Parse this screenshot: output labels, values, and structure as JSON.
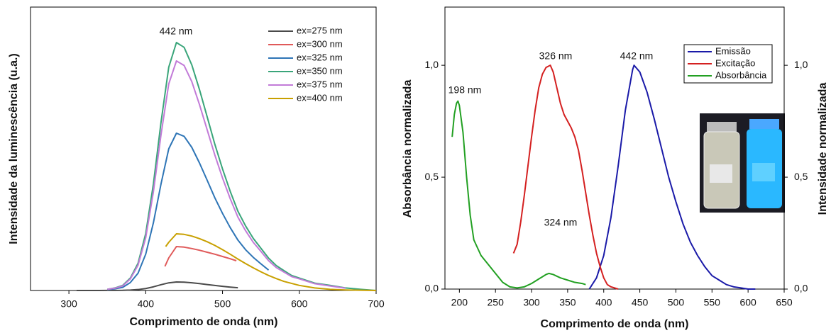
{
  "chart_data": [
    {
      "type": "line",
      "x_label": "Comprimento de onda (nm)",
      "y_label": "Intensidade da luminescência  (u.a.)",
      "xlim": [
        250,
        700
      ],
      "xticks": [
        300,
        400,
        500,
        600,
        700
      ],
      "ylim": [
        0,
        100
      ],
      "legend": "upper right",
      "legend_frame": false,
      "annotations": [
        "442 nm"
      ],
      "series": [
        {
          "name": "ex=275 nm",
          "color": "#4a4a4a",
          "x": [
            310,
            320,
            330,
            340,
            350,
            360,
            370,
            380,
            390,
            400,
            410,
            420,
            430,
            440,
            450,
            460,
            470,
            480,
            490,
            500,
            510,
            520
          ],
          "values": [
            0,
            0,
            0,
            0,
            0.03,
            0.03,
            0.06,
            0.15,
            0.33,
            0.69,
            1.29,
            2.04,
            2.7,
            3,
            2.94,
            2.73,
            2.43,
            2.1,
            1.77,
            1.47,
            1.2,
            0.96
          ]
        },
        {
          "name": "ex=300 nm",
          "color": "#e05a5a",
          "x": [
            425,
            430,
            440,
            450,
            460,
            470,
            480,
            490,
            500,
            510,
            518
          ],
          "values": [
            8.5,
            11.5,
            15.5,
            15.3,
            14.8,
            14.2,
            13.5,
            12.8,
            12,
            11.2,
            10.5
          ]
        },
        {
          "name": "ex=325 nm",
          "color": "#2e75b6",
          "x": [
            350,
            360,
            370,
            380,
            390,
            400,
            410,
            420,
            430,
            440,
            450,
            460,
            470,
            480,
            490,
            500,
            510,
            520,
            530,
            540,
            550,
            560
          ],
          "values": [
            0.3,
            0.6,
            1.1,
            2.8,
            6.1,
            12.8,
            23.9,
            37.7,
            50,
            55.5,
            54.4,
            50.5,
            45,
            38.9,
            32.7,
            27.2,
            22.2,
            17.8,
            14.4,
            11.7,
            9.4,
            7.2
          ]
        },
        {
          "name": "ex=350 nm",
          "color": "#3aa57a",
          "x": [
            350,
            360,
            370,
            380,
            390,
            400,
            410,
            420,
            430,
            440,
            450,
            460,
            470,
            480,
            490,
            500,
            510,
            520,
            530,
            540,
            550,
            560,
            570,
            580,
            590,
            600,
            620,
            640,
            660,
            680,
            700
          ],
          "values": [
            0.4,
            0.9,
            1.8,
            4.4,
            9.6,
            20.1,
            37.6,
            59.5,
            78.8,
            87.5,
            85.8,
            79.6,
            70.9,
            61.3,
            51.6,
            42.9,
            35,
            28,
            22.8,
            18.4,
            14.9,
            11.4,
            8.8,
            7,
            5.3,
            4.4,
            2.6,
            1.8,
            0.9,
            0.4,
            0
          ]
        },
        {
          "name": "ex=375 nm",
          "color": "#c27bd8",
          "x": [
            350,
            360,
            370,
            380,
            390,
            400,
            410,
            420,
            430,
            440,
            450,
            460,
            470,
            480,
            490,
            500,
            510,
            520,
            530,
            540,
            550,
            560,
            570,
            580,
            590,
            600,
            620,
            640,
            660
          ],
          "values": [
            0.4,
            0.8,
            1.6,
            4.1,
            8.9,
            18.6,
            34.8,
            55.1,
            72.9,
            81,
            79.4,
            73.7,
            65.6,
            56.7,
            47.8,
            39.7,
            32.4,
            25.9,
            21.1,
            17,
            13.8,
            10.5,
            8.1,
            6.5,
            4.9,
            4.1,
            2.4,
            1.6,
            0.8
          ]
        },
        {
          "name": "ex=400 nm",
          "color": "#c8a000",
          "x": [
            426,
            430,
            440,
            450,
            460,
            470,
            480,
            490,
            500,
            510,
            520,
            530,
            540,
            550,
            560,
            570,
            580,
            600,
            620,
            640,
            660,
            680,
            700
          ],
          "values": [
            15.5,
            17,
            20,
            19.8,
            19.2,
            18.3,
            17.2,
            15.9,
            14.4,
            12.8,
            11.1,
            9.5,
            8,
            6.6,
            5.3,
            4.2,
            3.2,
            1.8,
            0.9,
            0.4,
            0.2,
            0.1,
            0
          ]
        }
      ]
    },
    {
      "type": "line",
      "x_label": "Comprimento de onda (nm)",
      "y_label": "Absorbância normalizada",
      "y2_label": "Intensidade normalizada",
      "xlim": [
        180,
        650
      ],
      "xticks": [
        200,
        250,
        300,
        350,
        400,
        450,
        500,
        550,
        600,
        650
      ],
      "ylim": [
        0,
        1.26
      ],
      "yticks": [
        {
          "value": 0,
          "label": "0,0"
        },
        {
          "value": 0.5,
          "label": "0,5"
        },
        {
          "value": 1,
          "label": "1,0"
        }
      ],
      "y2lim": [
        0,
        1.26
      ],
      "y2ticks": [
        {
          "value": 0,
          "label": "0,0"
        },
        {
          "value": 0.5,
          "label": "0,5"
        },
        {
          "value": 1,
          "label": "1,0"
        }
      ],
      "legend": "upper right",
      "legend_frame": true,
      "annotations": [
        "198 nm",
        "326 nm",
        "442 nm",
        "324 nm"
      ],
      "series": [
        {
          "name": "Emissão",
          "color": "#1a1aa8",
          "axis": "y2",
          "x": [
            380,
            390,
            400,
            410,
            420,
            430,
            440,
            442,
            450,
            460,
            470,
            480,
            490,
            500,
            510,
            520,
            530,
            540,
            550,
            560,
            570,
            580,
            590,
            600,
            610
          ],
          "values": [
            0,
            0.05,
            0.15,
            0.32,
            0.55,
            0.8,
            0.98,
            1,
            0.97,
            0.88,
            0.76,
            0.63,
            0.5,
            0.39,
            0.29,
            0.21,
            0.15,
            0.1,
            0.06,
            0.04,
            0.02,
            0.01,
            0.005,
            0,
            0
          ]
        },
        {
          "name": "Excitação",
          "color": "#d42020",
          "axis": "y2",
          "x": [
            275,
            280,
            285,
            290,
            295,
            300,
            305,
            310,
            315,
            320,
            326,
            330,
            335,
            340,
            345,
            350,
            355,
            360,
            365,
            370,
            375,
            380,
            385,
            390,
            395,
            400,
            405,
            410,
            420
          ],
          "values": [
            0.16,
            0.2,
            0.3,
            0.42,
            0.55,
            0.68,
            0.8,
            0.9,
            0.96,
            0.99,
            1,
            0.97,
            0.9,
            0.83,
            0.78,
            0.75,
            0.72,
            0.68,
            0.62,
            0.53,
            0.43,
            0.33,
            0.24,
            0.16,
            0.1,
            0.05,
            0.02,
            0.01,
            0
          ]
        },
        {
          "name": "Absorbância",
          "color": "#22a022",
          "x": [
            190,
            193,
            196,
            198,
            200,
            205,
            210,
            215,
            220,
            230,
            240,
            250,
            260,
            270,
            280,
            290,
            300,
            310,
            320,
            324,
            330,
            340,
            350,
            360,
            370,
            375
          ],
          "values": [
            0.68,
            0.78,
            0.83,
            0.84,
            0.82,
            0.7,
            0.5,
            0.33,
            0.22,
            0.15,
            0.11,
            0.07,
            0.03,
            0.01,
            0.005,
            0.01,
            0.025,
            0.045,
            0.065,
            0.07,
            0.065,
            0.05,
            0.04,
            0.03,
            0.025,
            0.02
          ]
        }
      ]
    }
  ]
}
